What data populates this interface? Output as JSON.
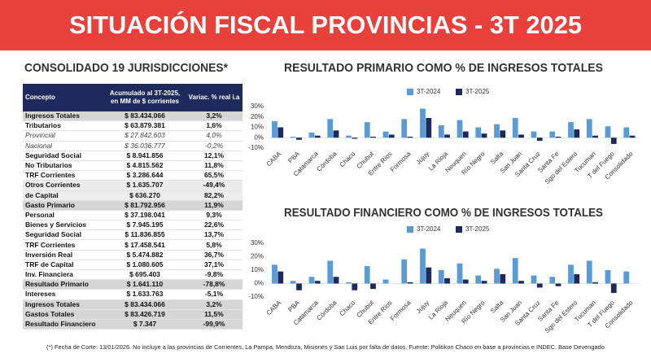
{
  "header": {
    "title": "SITUACIÓN FISCAL PROVINCIAS - 3T 2025"
  },
  "table": {
    "title": "CONSOLIDADO 19 JURISDICCIONES*",
    "columns": [
      "Concepto",
      "Acumulado al 3T-2025, en MM de $ corrientes",
      "Variac. % real i.a"
    ],
    "rows": [
      [
        "Ingresos Totales",
        "$ 83.434.066",
        "3,2%"
      ],
      [
        "Tributarios",
        "$ 63.879.381",
        "1,6%"
      ],
      [
        "Provincial",
        "$ 27.842.603",
        "4,0%"
      ],
      [
        "Nacional",
        "$ 36.036.777",
        "-0,2%"
      ],
      [
        "Seguridad Social",
        "$ 8.941.856",
        "12,1%"
      ],
      [
        "No Tributarios",
        "$ 4.815.562",
        "11,8%"
      ],
      [
        "TRF Corrientes",
        "$ 3.286.644",
        "65,5%"
      ],
      [
        "Otros Corrientes",
        "$ 1.635.707",
        "-49,4%"
      ],
      [
        "de Capital",
        "$ 636.270",
        "82,2%"
      ],
      [
        "Gasto Primario",
        "$ 81.792.956",
        "11,9%"
      ],
      [
        "Personal",
        "$ 37.198.041",
        "9,3%"
      ],
      [
        "Bienes y Servicios",
        "$ 7.945.195",
        "22,6%"
      ],
      [
        "Seguridad Social",
        "$ 11.836.855",
        "13,7%"
      ],
      [
        "TRF Corrientes",
        "$ 17.458.541",
        "5,8%"
      ],
      [
        "Inversión Real",
        "$ 5.474.882",
        "36,7%"
      ],
      [
        "TRF de Capital",
        "$ 1.080.605",
        "37,1%"
      ],
      [
        "Inv. Financiera",
        "$ 695.403",
        "-9,8%"
      ],
      [
        "Resultado Primario",
        "$ 1.641.110",
        "-78,8%"
      ],
      [
        "Intereses",
        "$ 1.633.763",
        "-5,1%"
      ],
      [
        "Ingresos Totales",
        "$ 83.434.066",
        "3,2%"
      ],
      [
        "Gastos Totales",
        "$ 83.426.719",
        "11,5%"
      ],
      [
        "Resultado Financiero",
        "$ 7.347",
        "-99,9%"
      ]
    ]
  },
  "chart_data": [
    {
      "type": "bar",
      "title": "RESULTADO PRIMARIO COMO % DE INGRESOS TOTALES",
      "categories": [
        "CABA",
        "PBA",
        "Catamarca",
        "Córdoba",
        "Chaco",
        "Chubut",
        "Entre Ríos",
        "Formosa",
        "Jujuy",
        "La Rioja",
        "Neuquen",
        "Río Negro",
        "Salta",
        "San Juan",
        "Santa Cruz",
        "Santa Fe",
        "Sgo del Estero",
        "Tucuman",
        "T del Fuego",
        "Consolidado"
      ],
      "series": [
        {
          "name": "3T-2024",
          "color": "#5b9bd5",
          "values": [
            16,
            1,
            5,
            18,
            2,
            15,
            6,
            18,
            28,
            12,
            17,
            10,
            13,
            19,
            6,
            6,
            15,
            18,
            11,
            10
          ]
        },
        {
          "name": "3T-2025",
          "color": "#1f2a5c",
          "values": [
            10,
            -2,
            2,
            7,
            -1,
            1,
            3,
            1,
            19,
            3,
            6,
            4,
            7,
            3,
            -3,
            1,
            8,
            2,
            -6,
            2
          ]
        }
      ],
      "ylim": [
        -10,
        30
      ],
      "yticks": [
        {
          "value": -10,
          "label": "-10%"
        },
        {
          "value": 0,
          "label": "0%"
        },
        {
          "value": 10,
          "label": "10%"
        },
        {
          "value": 20,
          "label": "20%"
        },
        {
          "value": 30,
          "label": "30%"
        }
      ],
      "grid": false
    },
    {
      "type": "bar",
      "title": "RESULTADO FINANCIERO COMO % DE INGRESOS TOTALES",
      "categories": [
        "CABA",
        "PBA",
        "Catamarca",
        "Córdoba",
        "Chaco",
        "Chubut",
        "Entre Ríos",
        "Formosa",
        "Jujuy",
        "La Rioja",
        "Neuquen",
        "Río Negro",
        "Salta",
        "San Juan",
        "Santa Cruz",
        "Santa Fe",
        "Sgo del Estero",
        "Tucuman",
        "T del Fuego",
        "Consolidado"
      ],
      "series": [
        {
          "name": "3T-2024",
          "color": "#5b9bd5",
          "values": [
            14,
            2,
            5,
            17,
            1,
            13,
            3,
            18,
            26,
            10,
            15,
            6,
            11,
            19,
            6,
            5,
            14,
            17,
            10,
            9
          ]
        },
        {
          "name": "3T-2025",
          "color": "#1f2a5c",
          "values": [
            9,
            -5,
            2,
            5,
            -5,
            -4,
            0,
            1,
            12,
            4,
            3,
            2,
            7,
            2,
            -3,
            -2,
            7,
            1,
            -7,
            0
          ]
        }
      ],
      "ylim": [
        -10,
        30
      ],
      "yticks": [
        {
          "value": -10,
          "label": "-10%"
        },
        {
          "value": 0,
          "label": "0%"
        },
        {
          "value": 10,
          "label": "10%"
        },
        {
          "value": 20,
          "label": "20%"
        },
        {
          "value": 30,
          "label": "30%"
        }
      ],
      "grid": false
    }
  ],
  "footnote": "(*) Fecha de Corte: 13/01/2026. No incluye a las provincias de Corrientes, La Pampa, Mendoza, Misiones y San Luis por falta de datos. Fuente: Politikon Chaco en base a provincias e INDEC. Base Devengado"
}
